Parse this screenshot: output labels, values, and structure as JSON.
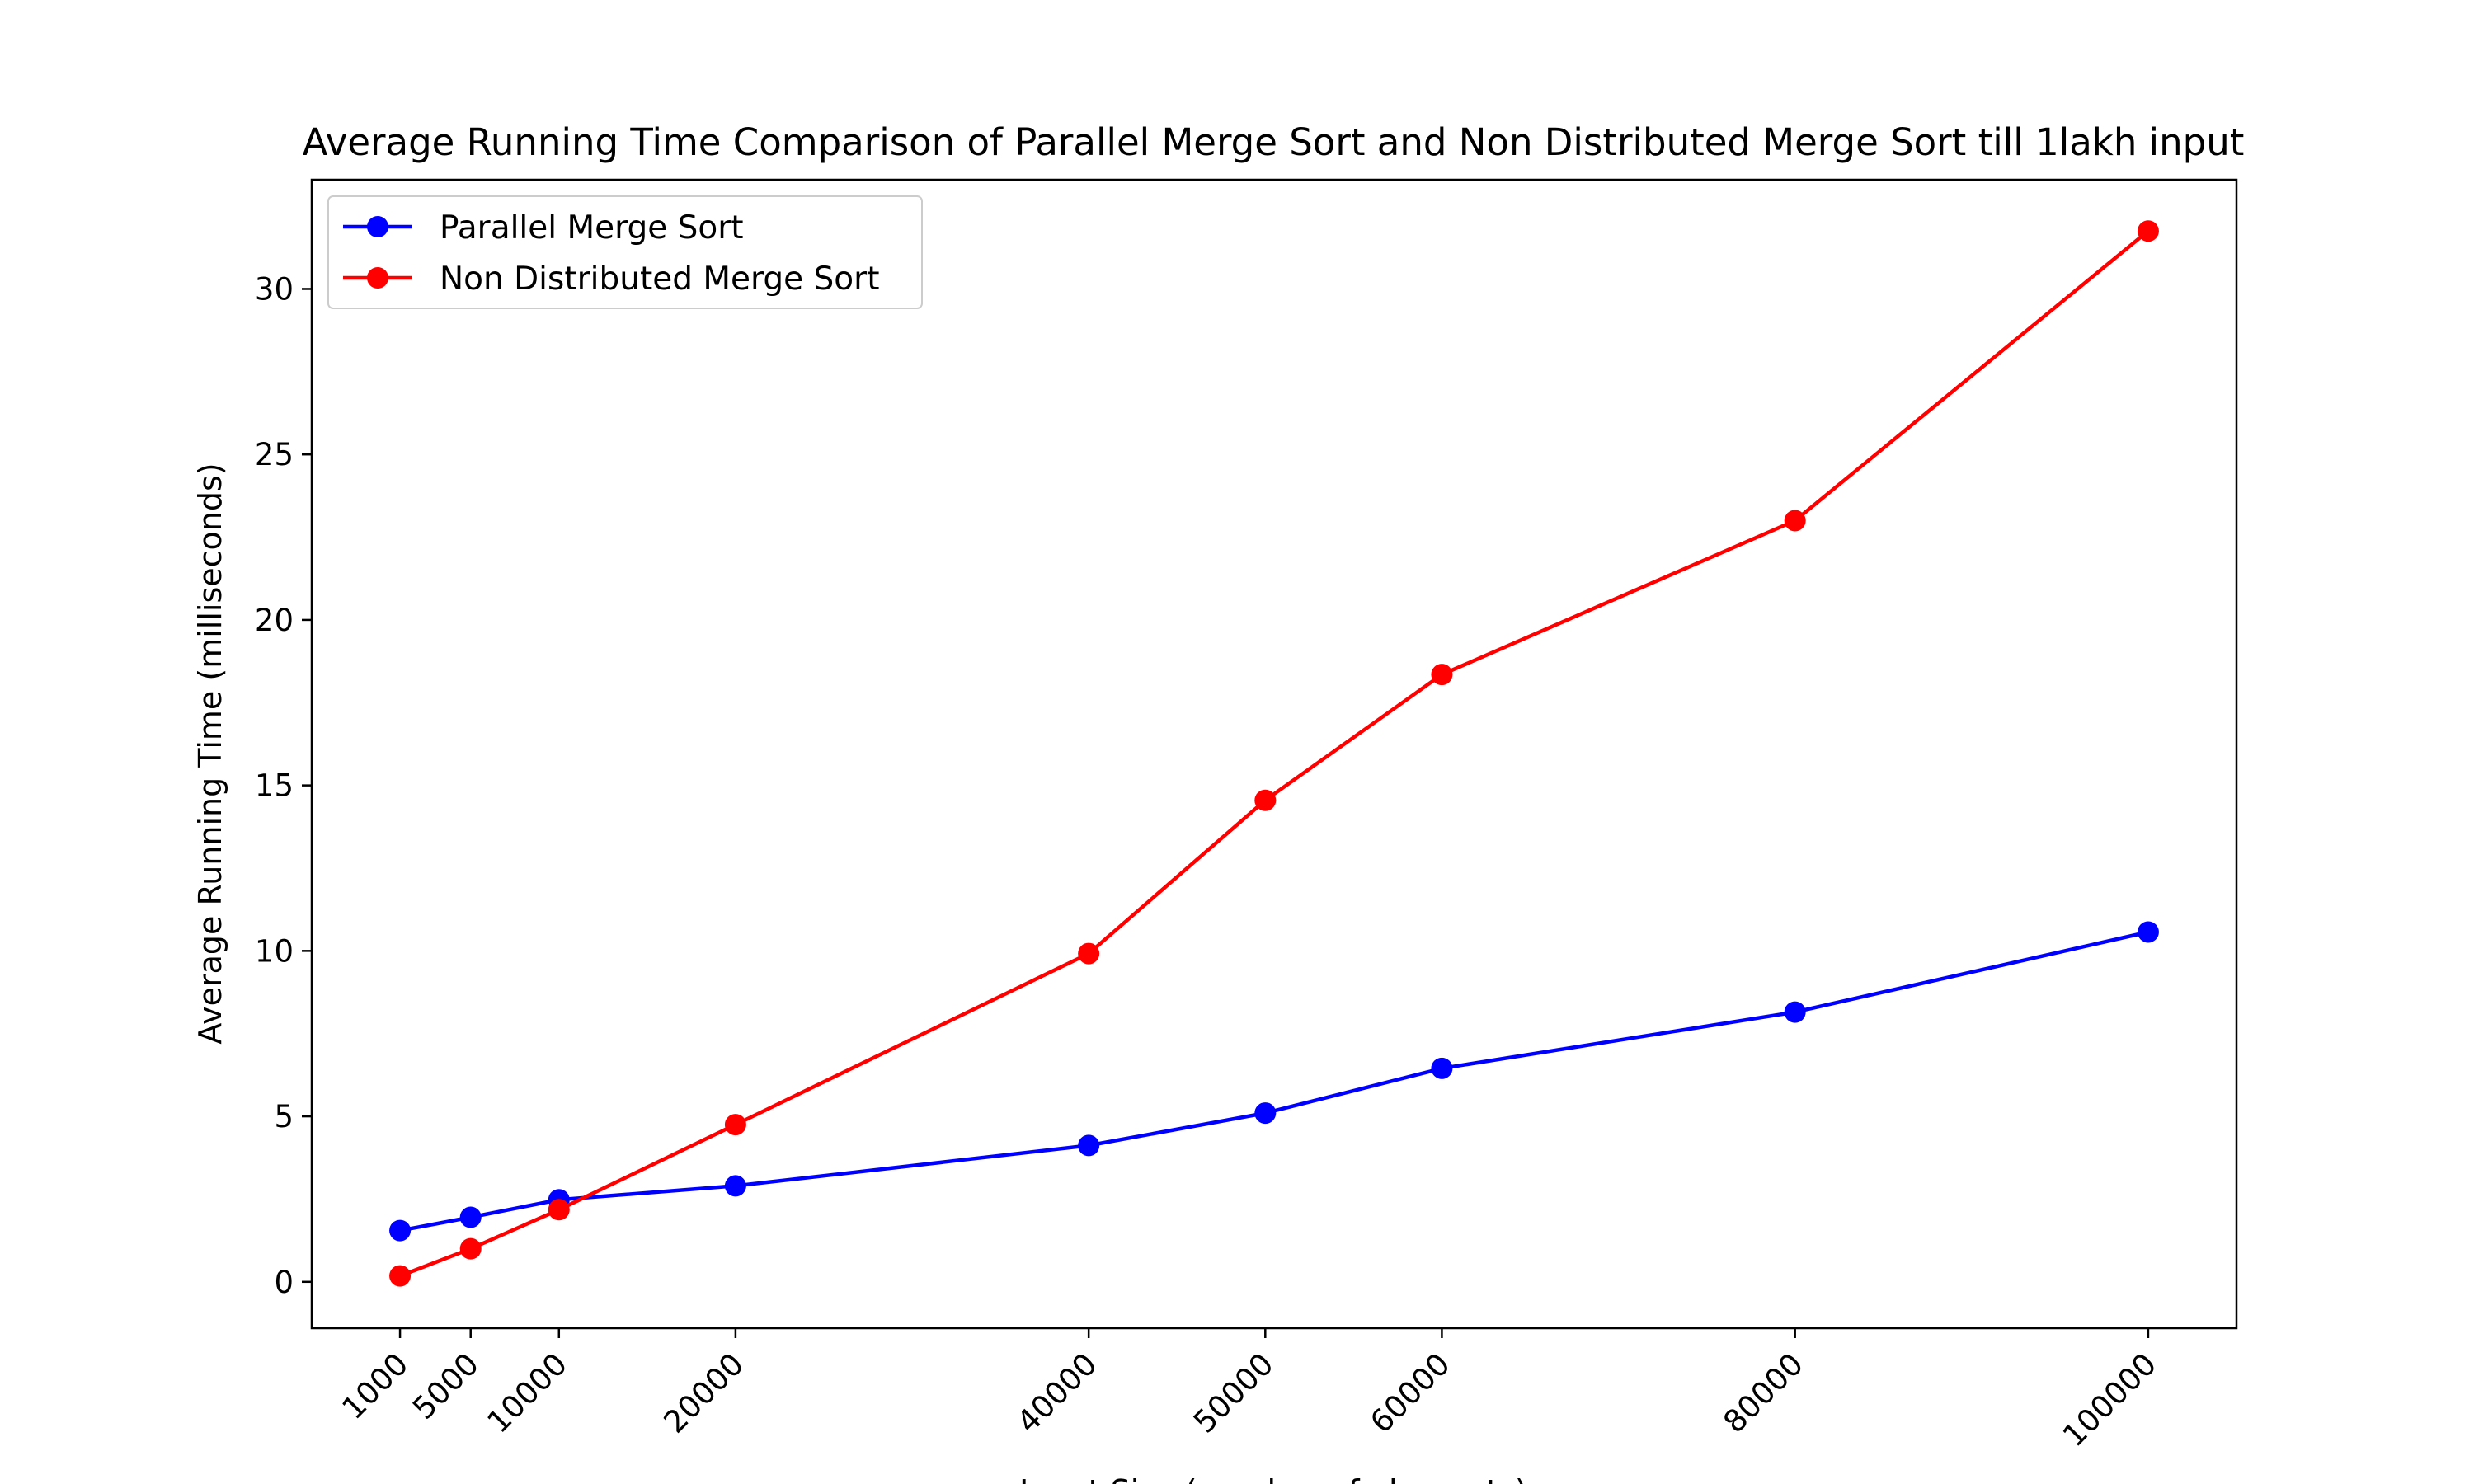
{
  "chart_data": {
    "type": "line",
    "title": "Average Running Time Comparison of Parallel Merge Sort and Non Distributed Merge Sort till 1lakh input",
    "xlabel": "Input Size (number of elements)",
    "ylabel": "Average Running Time (milliseconds)",
    "x": [
      1000,
      5000,
      10000,
      20000,
      40000,
      50000,
      60000,
      80000,
      100000
    ],
    "xticks": [
      "1000",
      "5000",
      "10000",
      "20000",
      "40000",
      "50000",
      "60000",
      "80000",
      "100000"
    ],
    "yticks": [
      0,
      5,
      10,
      15,
      20,
      25,
      30
    ],
    "xlim": [
      -4000,
      105000
    ],
    "ylim": [
      -1.4,
      33.3
    ],
    "grid": false,
    "legend_position": "upper-left",
    "series": [
      {
        "name": "Parallel Merge Sort",
        "color": "#0000ff",
        "values": [
          1.55,
          1.95,
          2.48,
          2.9,
          4.12,
          5.1,
          6.45,
          8.15,
          10.57
        ]
      },
      {
        "name": "Non Distributed Merge Sort",
        "color": "#ff0000",
        "values": [
          0.18,
          1.0,
          2.18,
          4.75,
          9.92,
          14.55,
          18.35,
          23.0,
          31.75
        ]
      }
    ]
  }
}
